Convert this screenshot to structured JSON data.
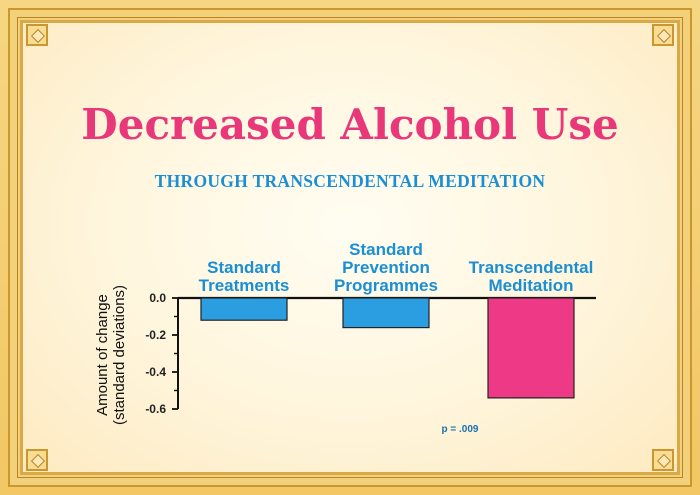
{
  "chart_data": {
    "type": "bar",
    "title": "Decreased Alcohol Use",
    "subtitle": "THROUGH TRANSCENDENTAL MEDITATION",
    "categories": [
      [
        "Standard",
        "Treatments"
      ],
      [
        "Standard",
        "Prevention",
        "Programmes"
      ],
      [
        "Transcendental",
        "Meditation"
      ]
    ],
    "values": [
      -0.12,
      -0.16,
      -0.54
    ],
    "bar_colors": [
      "#2a9ee0",
      "#2a9ee0",
      "#ee3a86"
    ],
    "ylabel": [
      "Amount of change",
      "(standard deviations)"
    ],
    "yticks": [
      "0.0",
      "-0.2",
      "-0.4",
      "-0.6"
    ],
    "ylim": [
      -0.6,
      0.0
    ],
    "annotation": "p = .009",
    "grid": false
  },
  "colors": {
    "title": "#e8387a",
    "subtitle": "#1a8fd4",
    "frame": "#c9962f"
  }
}
